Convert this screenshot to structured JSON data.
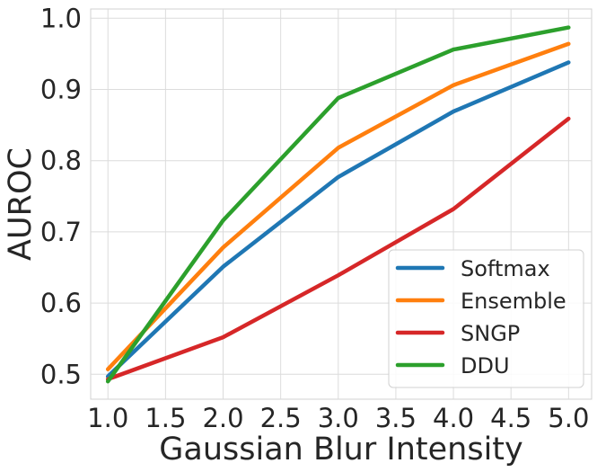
{
  "chart_data": {
    "type": "line",
    "title": "",
    "xlabel": "Gaussian Blur Intensity",
    "ylabel": "AUROC",
    "x": [
      1.0,
      2.0,
      3.0,
      4.0,
      5.0
    ],
    "xticks": [
      "1.0",
      "1.5",
      "2.0",
      "2.5",
      "3.0",
      "3.5",
      "4.0",
      "4.5",
      "5.0"
    ],
    "yticks": [
      "0.5",
      "0.6",
      "0.7",
      "0.8",
      "0.9",
      "1.0"
    ],
    "xlim": [
      0.85,
      5.2
    ],
    "ylim": [
      0.465,
      1.013
    ],
    "grid": true,
    "legend_position": "lower-right",
    "series": [
      {
        "name": "Softmax",
        "color": "#1f77b4",
        "values": [
          0.497,
          0.651,
          0.777,
          0.869,
          0.938
        ]
      },
      {
        "name": "Ensemble",
        "color": "#ff7f0e",
        "values": [
          0.507,
          0.678,
          0.818,
          0.906,
          0.964
        ]
      },
      {
        "name": "SNGP",
        "color": "#d62728",
        "values": [
          0.493,
          0.552,
          0.639,
          0.732,
          0.859
        ]
      },
      {
        "name": "DDU",
        "color": "#2ca02c",
        "values": [
          0.49,
          0.716,
          0.888,
          0.956,
          0.987
        ]
      }
    ]
  }
}
